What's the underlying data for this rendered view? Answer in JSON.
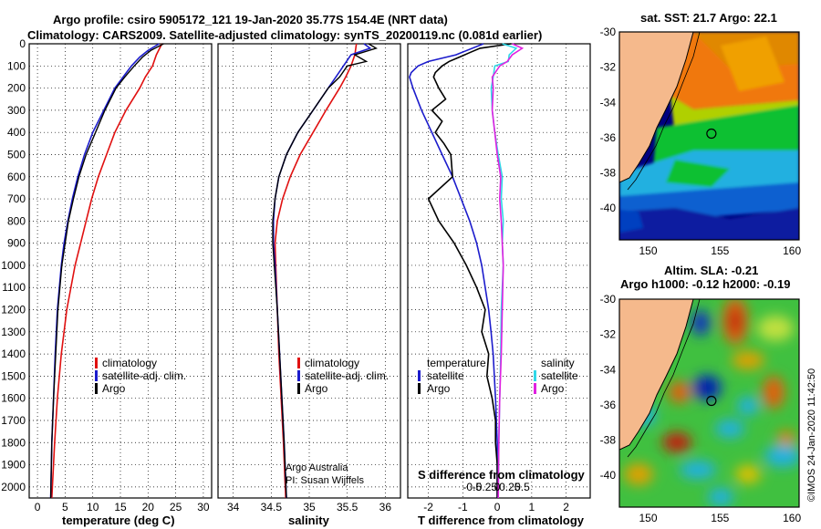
{
  "header": {
    "line1": "Argo profile: csiro 5905172_121 19-Jan-2020 35.77S 154.4E (NRT data)",
    "line2": "Climatology: CARS2009. Satellite-adjusted climatology: synTS_20200119.nc (0.081d earlier)"
  },
  "colors": {
    "climatology": "#e01010",
    "satellite": "#1c1ccc",
    "argo": "#000000",
    "sal_sat": "#30d8e8",
    "sal_argo": "#e020e0"
  },
  "chart_data": [
    {
      "id": "temperature",
      "type": "line",
      "xlabel": "temperature (deg C)",
      "ylabel": "",
      "xlim": [
        -1.5,
        31.5
      ],
      "ylim": [
        0,
        2050
      ],
      "xticks": [
        "0",
        "5",
        "10",
        "15",
        "20",
        "25",
        "30"
      ],
      "yticks": [
        "0",
        "100",
        "200",
        "300",
        "400",
        "500",
        "600",
        "700",
        "800",
        "900",
        "1000",
        "1100",
        "1200",
        "1300",
        "1400",
        "1500",
        "1600",
        "1700",
        "1800",
        "1900",
        "2000"
      ],
      "legend": [
        "climatology",
        "satellite-adj. clim.",
        "Argo"
      ],
      "series": [
        {
          "name": "climatology",
          "depth": [
            0,
            50,
            100,
            150,
            200,
            300,
            400,
            500,
            600,
            700,
            800,
            900,
            1000,
            1200,
            1400,
            1600,
            1800,
            2050
          ],
          "values": [
            22.5,
            21.5,
            20.8,
            19.5,
            18.5,
            16,
            14,
            12.5,
            11,
            9.8,
            8.8,
            7.8,
            6.8,
            5.3,
            4.3,
            3.6,
            3.1,
            2.6
          ]
        },
        {
          "name": "satellite-adj. clim.",
          "depth": [
            0,
            30,
            60,
            100,
            150,
            200,
            300,
            400,
            500,
            600,
            700,
            800,
            900,
            1000,
            1200,
            1400,
            1600,
            1800,
            2050
          ],
          "values": [
            22,
            20,
            18.5,
            17,
            15.5,
            14,
            12,
            10,
            8.5,
            7.3,
            6.3,
            5.5,
            4.8,
            4.3,
            3.6,
            3.2,
            2.9,
            2.6,
            2.4
          ]
        },
        {
          "name": "Argo",
          "depth": [
            0,
            30,
            60,
            100,
            150,
            200,
            300,
            400,
            500,
            600,
            700,
            800,
            900,
            1000,
            1200,
            1400,
            1600,
            1800,
            2050
          ],
          "values": [
            22.8,
            20.5,
            19,
            17.5,
            15.8,
            14.2,
            12.2,
            10.5,
            8.8,
            7.5,
            6.5,
            5.6,
            5,
            4.4,
            3.7,
            3.3,
            2.9,
            2.6,
            2.4
          ]
        }
      ]
    },
    {
      "id": "salinity",
      "type": "line",
      "xlabel": "salinity",
      "xlim": [
        33.8,
        36.2
      ],
      "ylim": [
        0,
        2050
      ],
      "xticks": [
        "34",
        "34.5",
        "35",
        "35.5",
        "36"
      ],
      "legend": [
        "climatology",
        "satellite-adj. clim.",
        "Argo"
      ],
      "series": [
        {
          "name": "climatology",
          "depth": [
            0,
            50,
            100,
            150,
            200,
            300,
            400,
            500,
            600,
            700,
            800,
            900,
            1000,
            1200,
            1400,
            1600,
            1800,
            2050
          ],
          "values": [
            35.62,
            35.6,
            35.55,
            35.48,
            35.4,
            35.22,
            35.05,
            34.88,
            34.75,
            34.65,
            34.58,
            34.55,
            34.56,
            34.58,
            34.6,
            34.63,
            34.66,
            34.69
          ]
        },
        {
          "name": "satellite-adj. clim.",
          "depth": [
            0,
            20,
            50,
            100,
            150,
            200,
            300,
            400,
            500,
            600,
            700,
            800,
            900,
            1000,
            1200,
            1400,
            1600,
            1800,
            2050
          ],
          "values": [
            35.72,
            35.8,
            35.55,
            35.45,
            35.35,
            35.25,
            35.05,
            34.85,
            34.7,
            34.6,
            34.55,
            34.53,
            34.53,
            34.55,
            34.58,
            34.61,
            34.64,
            34.67,
            34.7
          ]
        },
        {
          "name": "Argo",
          "depth": [
            0,
            20,
            50,
            80,
            100,
            150,
            200,
            300,
            400,
            500,
            600,
            700,
            800,
            900,
            1000,
            1200,
            1400,
            1600,
            1800,
            2050
          ],
          "values": [
            35.78,
            35.88,
            35.6,
            35.75,
            35.5,
            35.4,
            35.25,
            35.05,
            34.85,
            34.7,
            34.6,
            34.55,
            34.52,
            34.52,
            34.54,
            34.58,
            34.61,
            34.64,
            34.67,
            34.7
          ]
        }
      ],
      "annotation_line1": "Argo Australia",
      "annotation_line2": "PI: Susan Wijffels"
    },
    {
      "id": "difference",
      "type": "line",
      "xlabel": "T difference from climatology",
      "title": "S difference from climatology",
      "xlim": [
        -2.6,
        2.7
      ],
      "ylim": [
        0,
        2050
      ],
      "xticks": [
        "-2",
        "-1",
        "0",
        "1",
        "2"
      ],
      "sticks": [
        "-0.5",
        "-0.25",
        "0",
        "0.25",
        "0.5"
      ],
      "legend_temp_title": "temperature",
      "legend_sal_title": "salinity",
      "legend_temp": [
        "satellite",
        "Argo"
      ],
      "legend_sal": [
        "satellite",
        "Argo"
      ],
      "series": [
        {
          "name": "T satellite",
          "depth": [
            0,
            50,
            80,
            100,
            130,
            150,
            200,
            300,
            400,
            500,
            600,
            700,
            800,
            900,
            1000,
            1100,
            1200,
            1300,
            1400,
            1600,
            1800,
            2050
          ],
          "values": [
            -0.4,
            -1.2,
            -2,
            -2.3,
            -2.5,
            -2.55,
            -2.45,
            -2.2,
            -1.9,
            -1.6,
            -1.3,
            -1.05,
            -0.8,
            -0.6,
            -0.45,
            -0.35,
            -0.25,
            -0.18,
            -0.12,
            -0.05,
            0,
            0
          ]
        },
        {
          "name": "T Argo",
          "depth": [
            0,
            20,
            40,
            60,
            80,
            100,
            130,
            150,
            200,
            250,
            300,
            350,
            400,
            450,
            500,
            600,
            700,
            800,
            900,
            1000,
            1100,
            1200,
            1300,
            1400,
            1500,
            1600,
            1700,
            1800,
            1900,
            2050
          ],
          "values": [
            0.4,
            -0.5,
            -0.8,
            -1.1,
            -1.4,
            -1.6,
            -1.8,
            -1.85,
            -1.7,
            -1.5,
            -1.9,
            -1.6,
            -1.8,
            -1.55,
            -1.35,
            -1.3,
            -2.0,
            -1.7,
            -1.25,
            -0.9,
            -0.6,
            -0.35,
            -0.45,
            -0.25,
            -0.3,
            -0.15,
            -0.05,
            -0.05,
            0,
            0
          ]
        },
        {
          "name": "S satellite",
          "depth": [
            0,
            20,
            50,
            80,
            100,
            150,
            200,
            300,
            400,
            500,
            600,
            700,
            800,
            900,
            1000,
            1200,
            1400,
            1600,
            1800,
            2050
          ],
          "values": [
            0.1,
            0.38,
            0.24,
            0.22,
            -0.05,
            -0.08,
            -0.12,
            -0.1,
            -0.05,
            0.02,
            0.1,
            0.08,
            0.12,
            0.1,
            0.12,
            0.08,
            0.07,
            0.05,
            0.03,
            0.02
          ]
        },
        {
          "name": "S Argo",
          "depth": [
            0,
            20,
            50,
            80,
            100,
            150,
            200,
            300,
            400,
            500,
            600,
            700,
            800,
            900,
            1000,
            1200,
            1400,
            1600,
            1800,
            2050
          ],
          "values": [
            0.3,
            0.5,
            0.3,
            0.2,
            0.05,
            -0.1,
            -0.08,
            -0.1,
            -0.05,
            0,
            0.07,
            0.05,
            0.08,
            0.1,
            0.12,
            0.1,
            0.08,
            0.05,
            0.03,
            0.02
          ]
        }
      ]
    }
  ],
  "maps": {
    "sst": {
      "title": "sat. SST: 21.7 Argo: 22.1",
      "yticks": [
        "-30",
        "-32",
        "-34",
        "-36",
        "-38",
        "-40"
      ],
      "xticks": [
        "150",
        "155",
        "160"
      ],
      "marker": {
        "lon": 154.4,
        "lat": -35.77
      }
    },
    "sla": {
      "title_line1": "Altim. SLA: -0.21",
      "title_line2": "Argo h1000: -0.12 h2000: -0.19",
      "yticks": [
        "-30",
        "-32",
        "-34",
        "-36",
        "-38",
        "-40"
      ],
      "xticks": [
        "150",
        "155",
        "160"
      ],
      "marker": {
        "lon": 154.4,
        "lat": -35.77
      }
    }
  },
  "credit": "©IMOS 24-Jan-2020 11:42:50"
}
